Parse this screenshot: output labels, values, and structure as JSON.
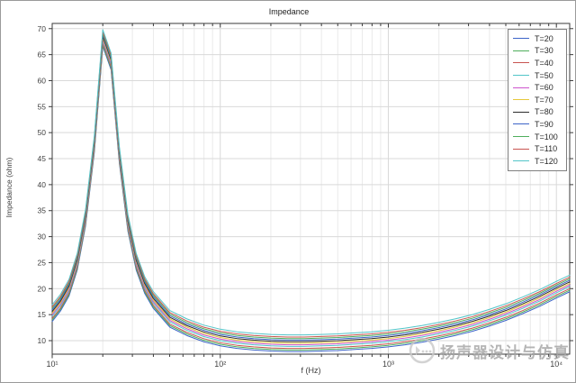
{
  "watermark": {
    "text": "扬声器设计与仿真",
    "color": "#a3a3a3"
  },
  "chart_data": {
    "type": "line",
    "title": "Impedance",
    "xlabel": "f (Hz)",
    "ylabel": "Impedance (ohm)",
    "x_scale": "log",
    "xlim": [
      10,
      12000
    ],
    "ylim": [
      7.4,
      71
    ],
    "y_ticks": [
      10,
      15,
      20,
      25,
      30,
      35,
      40,
      45,
      50,
      55,
      60,
      65,
      70
    ],
    "x_major_ticks": [
      10,
      100,
      1000,
      10000
    ],
    "x_tick_labels": [
      "10¹",
      "10²",
      "10³",
      "10⁴"
    ],
    "grid": true,
    "legend_position": "top-right",
    "frame_color": "#3a3a3a",
    "grid_major_color": "#d9d9d9",
    "grid_minor_color": "#eaeaea",
    "tick_label_color": "#404040",
    "x": [
      10,
      11.2,
      12.6,
      14.1,
      15.8,
      17.8,
      20,
      22.4,
      25.1,
      28.2,
      31.6,
      35.5,
      39.8,
      50.1,
      63.1,
      79.4,
      100,
      126,
      158,
      200,
      251,
      316,
      398,
      501,
      631,
      794,
      1000,
      1259,
      1585,
      1995,
      2512,
      3162,
      3981,
      5012,
      6310,
      7943,
      10000,
      12000
    ],
    "series": [
      {
        "name": "T=20",
        "color": "#3c64c8",
        "values": [
          13.7,
          15.7,
          18.6,
          23.6,
          32.1,
          46.1,
          66.6,
          62.1,
          44.1,
          31.1,
          23.6,
          19.1,
          16.3,
          12.6,
          11.0,
          9.8,
          9.0,
          8.5,
          8.2,
          8.0,
          7.9,
          7.9,
          8.0,
          8.1,
          8.3,
          8.5,
          8.8,
          9.2,
          9.7,
          10.3,
          11.0,
          11.8,
          12.8,
          13.9,
          15.2,
          16.6,
          18.2,
          19.4
        ]
      },
      {
        "name": "T=30",
        "color": "#4fae5c",
        "values": [
          14.0,
          16.0,
          18.9,
          23.9,
          32.4,
          46.4,
          66.9,
          62.4,
          44.4,
          31.4,
          23.9,
          19.4,
          16.6,
          12.9,
          11.3,
          10.1,
          9.3,
          8.8,
          8.5,
          8.3,
          8.2,
          8.2,
          8.3,
          8.4,
          8.6,
          8.8,
          9.1,
          9.5,
          10.0,
          10.6,
          11.3,
          12.1,
          13.1,
          14.2,
          15.5,
          16.9,
          18.5,
          19.7
        ]
      },
      {
        "name": "T=40",
        "color": "#c85450",
        "values": [
          14.3,
          16.3,
          19.2,
          24.2,
          32.7,
          46.7,
          67.2,
          62.7,
          44.7,
          31.7,
          24.2,
          19.7,
          16.9,
          13.2,
          11.6,
          10.4,
          9.6,
          9.1,
          8.8,
          8.6,
          8.5,
          8.5,
          8.6,
          8.7,
          8.9,
          9.1,
          9.4,
          9.8,
          10.3,
          10.9,
          11.6,
          12.4,
          13.4,
          14.5,
          15.8,
          17.2,
          18.8,
          20.0
        ]
      },
      {
        "name": "T=50",
        "color": "#52c5c8",
        "values": [
          14.7,
          16.7,
          19.6,
          24.6,
          33.1,
          47.1,
          67.6,
          63.1,
          45.1,
          32.1,
          24.6,
          20.1,
          17.3,
          13.6,
          12.0,
          10.8,
          10.0,
          9.5,
          9.2,
          9.0,
          8.9,
          8.9,
          9.0,
          9.1,
          9.3,
          9.5,
          9.8,
          10.2,
          10.7,
          11.3,
          12.0,
          12.8,
          13.8,
          14.9,
          16.2,
          17.6,
          19.2,
          20.4
        ]
      },
      {
        "name": "T=60",
        "color": "#cd54cd",
        "values": [
          15.0,
          17.0,
          19.9,
          24.9,
          33.4,
          47.4,
          67.9,
          63.4,
          45.4,
          32.4,
          24.9,
          20.4,
          17.6,
          13.9,
          12.3,
          11.1,
          10.3,
          9.8,
          9.5,
          9.3,
          9.2,
          9.2,
          9.3,
          9.4,
          9.6,
          9.8,
          10.1,
          10.5,
          11.0,
          11.6,
          12.3,
          13.1,
          14.1,
          15.2,
          16.5,
          17.9,
          19.5,
          20.7
        ]
      },
      {
        "name": "T=70",
        "color": "#e6c83c",
        "values": [
          15.3,
          17.3,
          20.2,
          25.2,
          33.7,
          47.7,
          68.2,
          63.7,
          45.7,
          32.7,
          25.2,
          20.7,
          17.9,
          14.2,
          12.6,
          11.4,
          10.6,
          10.1,
          9.8,
          9.6,
          9.5,
          9.5,
          9.6,
          9.7,
          9.9,
          10.1,
          10.4,
          10.8,
          11.3,
          11.9,
          12.6,
          13.4,
          14.4,
          15.5,
          16.8,
          18.2,
          19.8,
          21.0
        ]
      },
      {
        "name": "T=80",
        "color": "#2b2b2b",
        "values": [
          15.6,
          17.6,
          20.5,
          25.5,
          34.0,
          48.0,
          68.5,
          64.0,
          46.0,
          33.0,
          25.5,
          21.0,
          18.2,
          14.5,
          12.9,
          11.7,
          10.9,
          10.4,
          10.1,
          9.9,
          9.8,
          9.8,
          9.9,
          10.0,
          10.2,
          10.4,
          10.7,
          11.1,
          11.6,
          12.2,
          12.9,
          13.7,
          14.7,
          15.8,
          17.1,
          18.5,
          20.1,
          21.3
        ]
      },
      {
        "name": "T=90",
        "color": "#3c64c8",
        "values": [
          15.9,
          17.9,
          20.8,
          25.8,
          34.3,
          48.3,
          68.8,
          64.3,
          46.3,
          33.3,
          25.8,
          21.3,
          18.5,
          14.8,
          13.2,
          12.0,
          11.2,
          10.7,
          10.4,
          10.2,
          10.1,
          10.1,
          10.2,
          10.3,
          10.5,
          10.7,
          11.0,
          11.4,
          11.9,
          12.5,
          13.2,
          14.0,
          15.0,
          16.1,
          17.4,
          18.8,
          20.4,
          21.6
        ]
      },
      {
        "name": "T=100",
        "color": "#4fae5c",
        "values": [
          16.2,
          18.2,
          21.1,
          26.1,
          34.6,
          48.6,
          69.1,
          64.6,
          46.6,
          33.6,
          26.1,
          21.6,
          18.8,
          15.1,
          13.5,
          12.3,
          11.5,
          11.0,
          10.7,
          10.5,
          10.4,
          10.4,
          10.5,
          10.6,
          10.8,
          11.0,
          11.3,
          11.7,
          12.2,
          12.8,
          13.5,
          14.3,
          15.3,
          16.4,
          17.7,
          19.1,
          20.7,
          21.9
        ]
      },
      {
        "name": "T=110",
        "color": "#c85450",
        "values": [
          16.5,
          18.5,
          21.4,
          26.4,
          34.9,
          48.9,
          69.4,
          64.9,
          46.9,
          33.9,
          26.4,
          21.9,
          19.1,
          15.4,
          13.8,
          12.6,
          11.8,
          11.3,
          11.0,
          10.8,
          10.7,
          10.7,
          10.8,
          10.9,
          11.1,
          11.3,
          11.6,
          12.0,
          12.5,
          13.1,
          13.8,
          14.6,
          15.6,
          16.7,
          18.0,
          19.4,
          21.0,
          22.2
        ]
      },
      {
        "name": "T=120",
        "color": "#52c5c8",
        "values": [
          16.9,
          18.9,
          21.8,
          26.8,
          35.3,
          49.3,
          69.8,
          65.3,
          47.3,
          34.3,
          26.8,
          22.3,
          19.5,
          15.8,
          14.2,
          13.0,
          12.2,
          11.7,
          11.4,
          11.2,
          11.1,
          11.1,
          11.2,
          11.3,
          11.5,
          11.7,
          12.0,
          12.4,
          12.9,
          13.5,
          14.2,
          15.0,
          16.0,
          17.1,
          18.4,
          19.8,
          21.4,
          22.6
        ]
      }
    ]
  }
}
